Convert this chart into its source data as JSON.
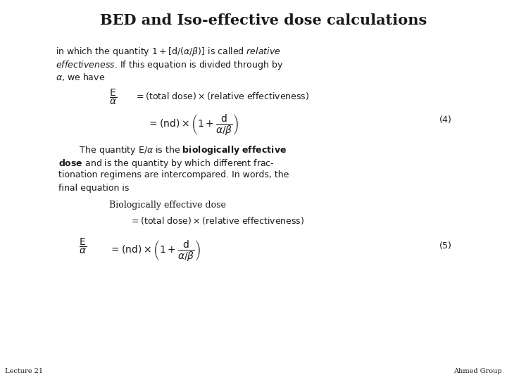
{
  "title": "BED and Iso-effective dose calculations",
  "title_fontsize": 15,
  "background_color": "#ffffff",
  "text_color": "#1a1a1a",
  "footer_left": "Lecture 21",
  "footer_right": "Ahmed Group",
  "footer_fontsize": 7,
  "body_fontsize": 9,
  "math_fontsize": 9,
  "para1_line1": "in which the quantity $1 + [\\mathrm{d}/(\\alpha/\\beta)]$ is called \\it{relative}",
  "para1_line2": "\\it{effectiveness}. If this equation is divided through by",
  "para1_line3": "$\\alpha$, we have",
  "eq1_lhs": "$\\dfrac{\\mathrm{E}}{\\alpha}$",
  "eq1_rhs": "$= (\\mathrm{total\\ dose}) \\times (\\mathrm{relative\\ effectiveness})$",
  "eq2": "$= (\\mathrm{nd}) \\times \\left(1 + \\dfrac{\\mathrm{d}}{\\alpha/\\beta}\\right)$",
  "eq2_num": "$(4)$",
  "para2_line1": "The quantity $\\mathrm{E}/\\alpha$ is the \\bf{biologically effective}",
  "para2_line2": "\\bf{dose} and is the quantity by which different frac-",
  "para2_line3": "tionation regimens are intercompared. In words, the",
  "para2_line4": "final equation is",
  "bed_label": "Biologically effective dose",
  "eq3_rhs": "$= (\\mathrm{total\\ dose}) \\times (\\mathrm{relative\\ effectiveness})$",
  "eq4_lhs": "$\\dfrac{\\mathrm{E}}{\\alpha}$",
  "eq4": "$= (\\mathrm{nd}) \\times \\left(1 + \\dfrac{\\mathrm{d}}{\\alpha/\\beta}\\right)$",
  "eq4_num": "$(5)$"
}
